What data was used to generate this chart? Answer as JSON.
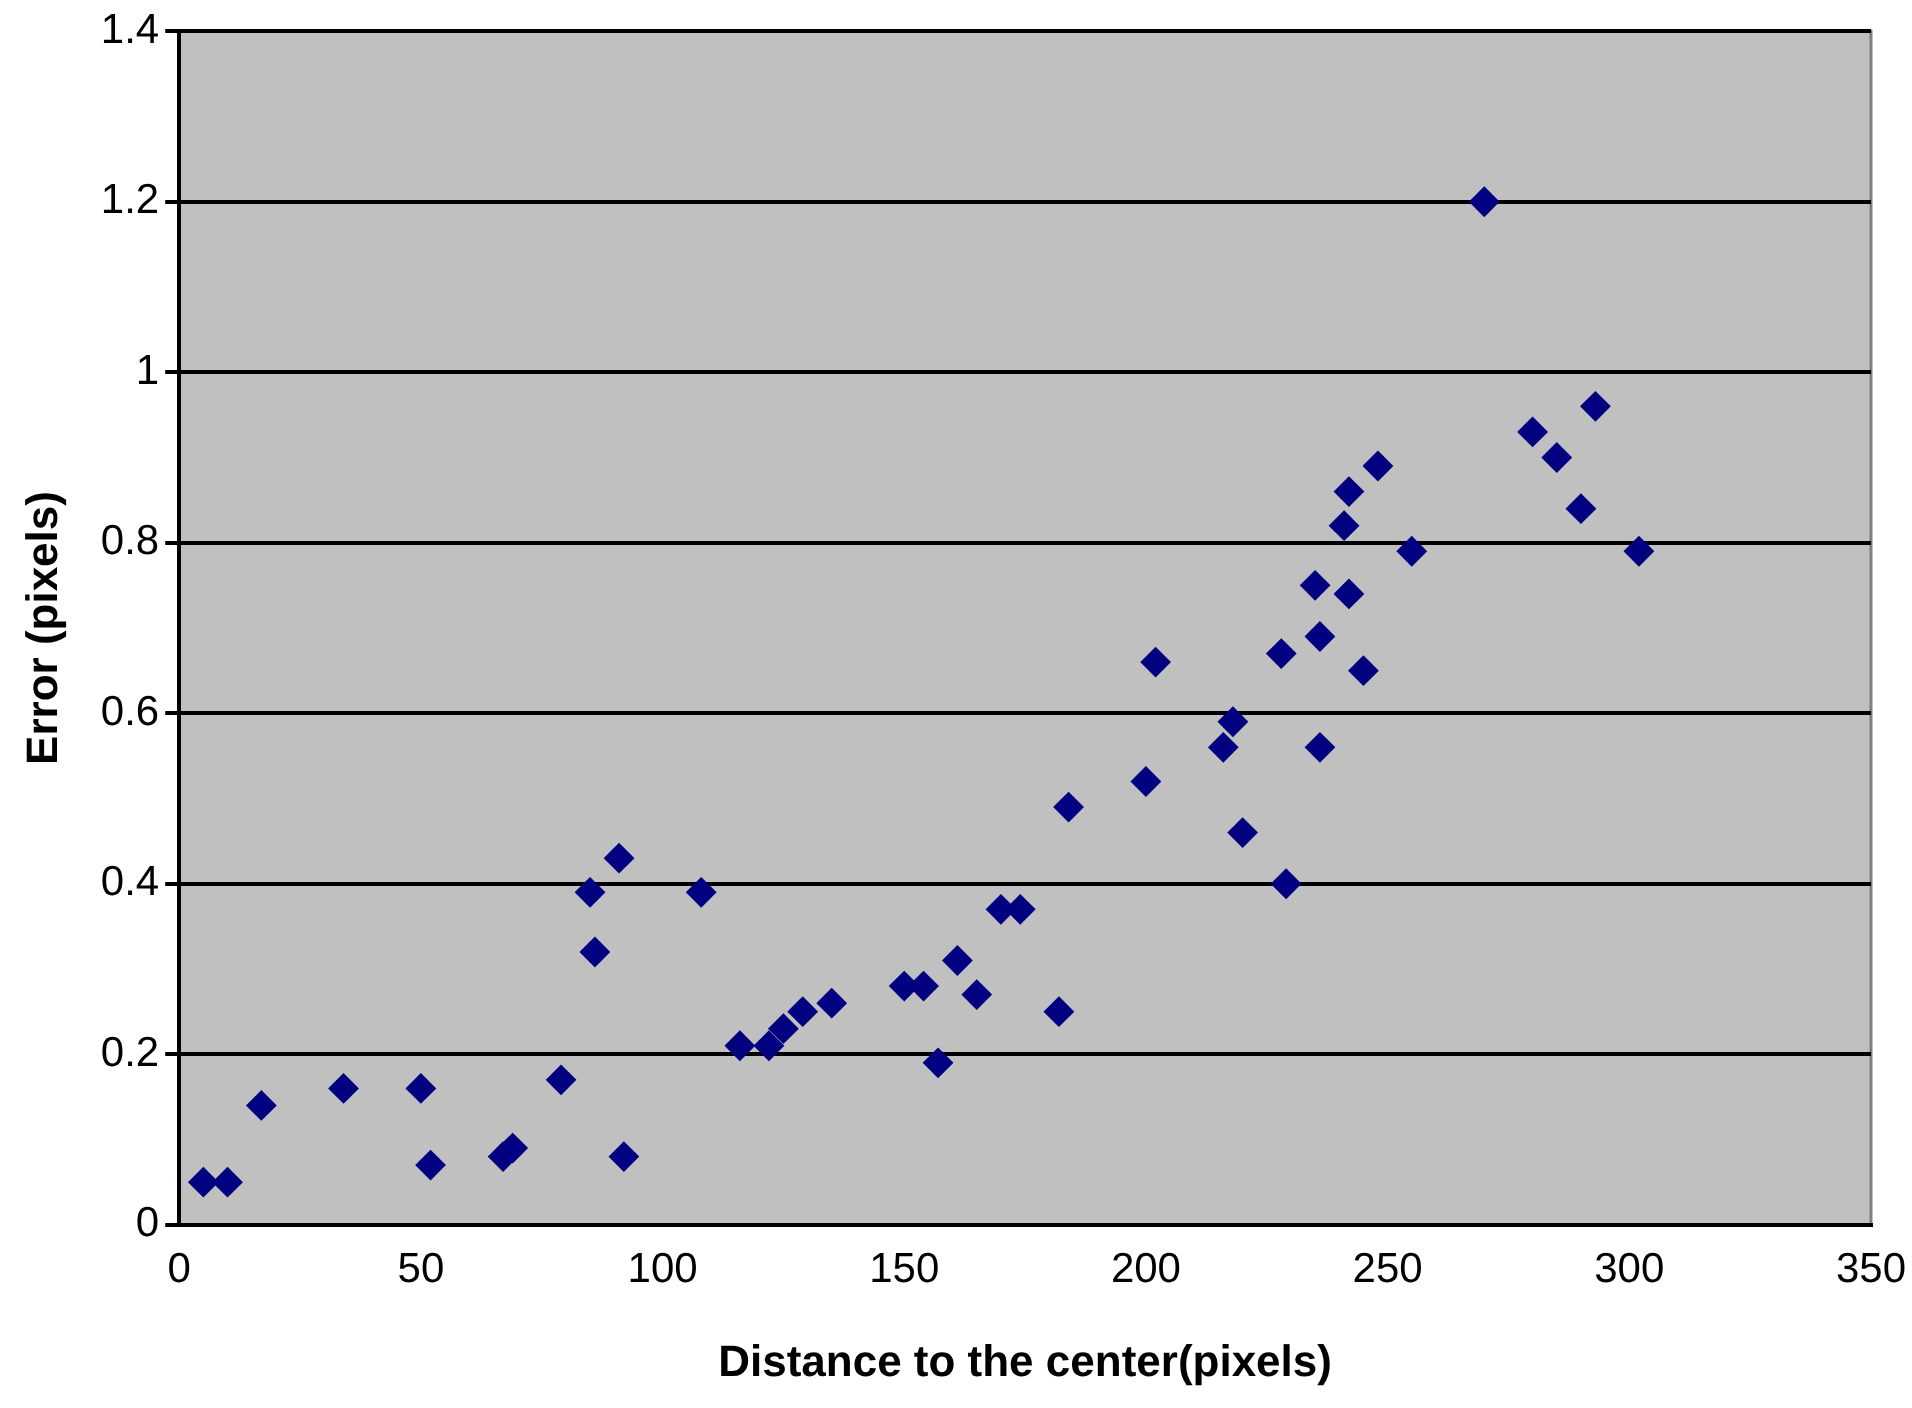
{
  "chart_data": {
    "type": "scatter",
    "xlabel": "Distance to the center(pixels)",
    "ylabel": "Error (pixels)",
    "marker": "diamond",
    "grid": "y",
    "xlim": [
      0,
      350
    ],
    "xticks": [
      0,
      50,
      100,
      150,
      200,
      250,
      300,
      350
    ],
    "ylim": [
      0,
      1.4
    ],
    "yticks": [
      0,
      0.2,
      0.4,
      0.6,
      0.8,
      1,
      1.2,
      1.4
    ],
    "series": [
      {
        "color": "#000080",
        "x": [
          5,
          10,
          17,
          34,
          50,
          52,
          67,
          69,
          79,
          85,
          86,
          91,
          92,
          108,
          116,
          122,
          125,
          129,
          135,
          150,
          154,
          157,
          161,
          165,
          170,
          174,
          182,
          184,
          200,
          202,
          216,
          218,
          220,
          228,
          229,
          235,
          236,
          236,
          241,
          242,
          242,
          245,
          248,
          255,
          270,
          280,
          285,
          290,
          293,
          302
        ],
        "values": [
          0.05,
          0.05,
          0.14,
          0.16,
          0.16,
          0.07,
          0.08,
          0.09,
          0.17,
          0.39,
          0.32,
          0.43,
          0.08,
          0.39,
          0.21,
          0.21,
          0.23,
          0.25,
          0.26,
          0.28,
          0.28,
          0.19,
          0.31,
          0.27,
          0.37,
          0.37,
          0.25,
          0.49,
          0.52,
          0.66,
          0.56,
          0.59,
          0.46,
          0.67,
          0.4,
          0.75,
          0.69,
          0.56,
          0.82,
          0.86,
          0.74,
          0.65,
          0.89,
          0.79,
          1.2,
          0.93,
          0.9,
          0.84,
          0.96,
          0.79
        ]
      }
    ]
  }
}
